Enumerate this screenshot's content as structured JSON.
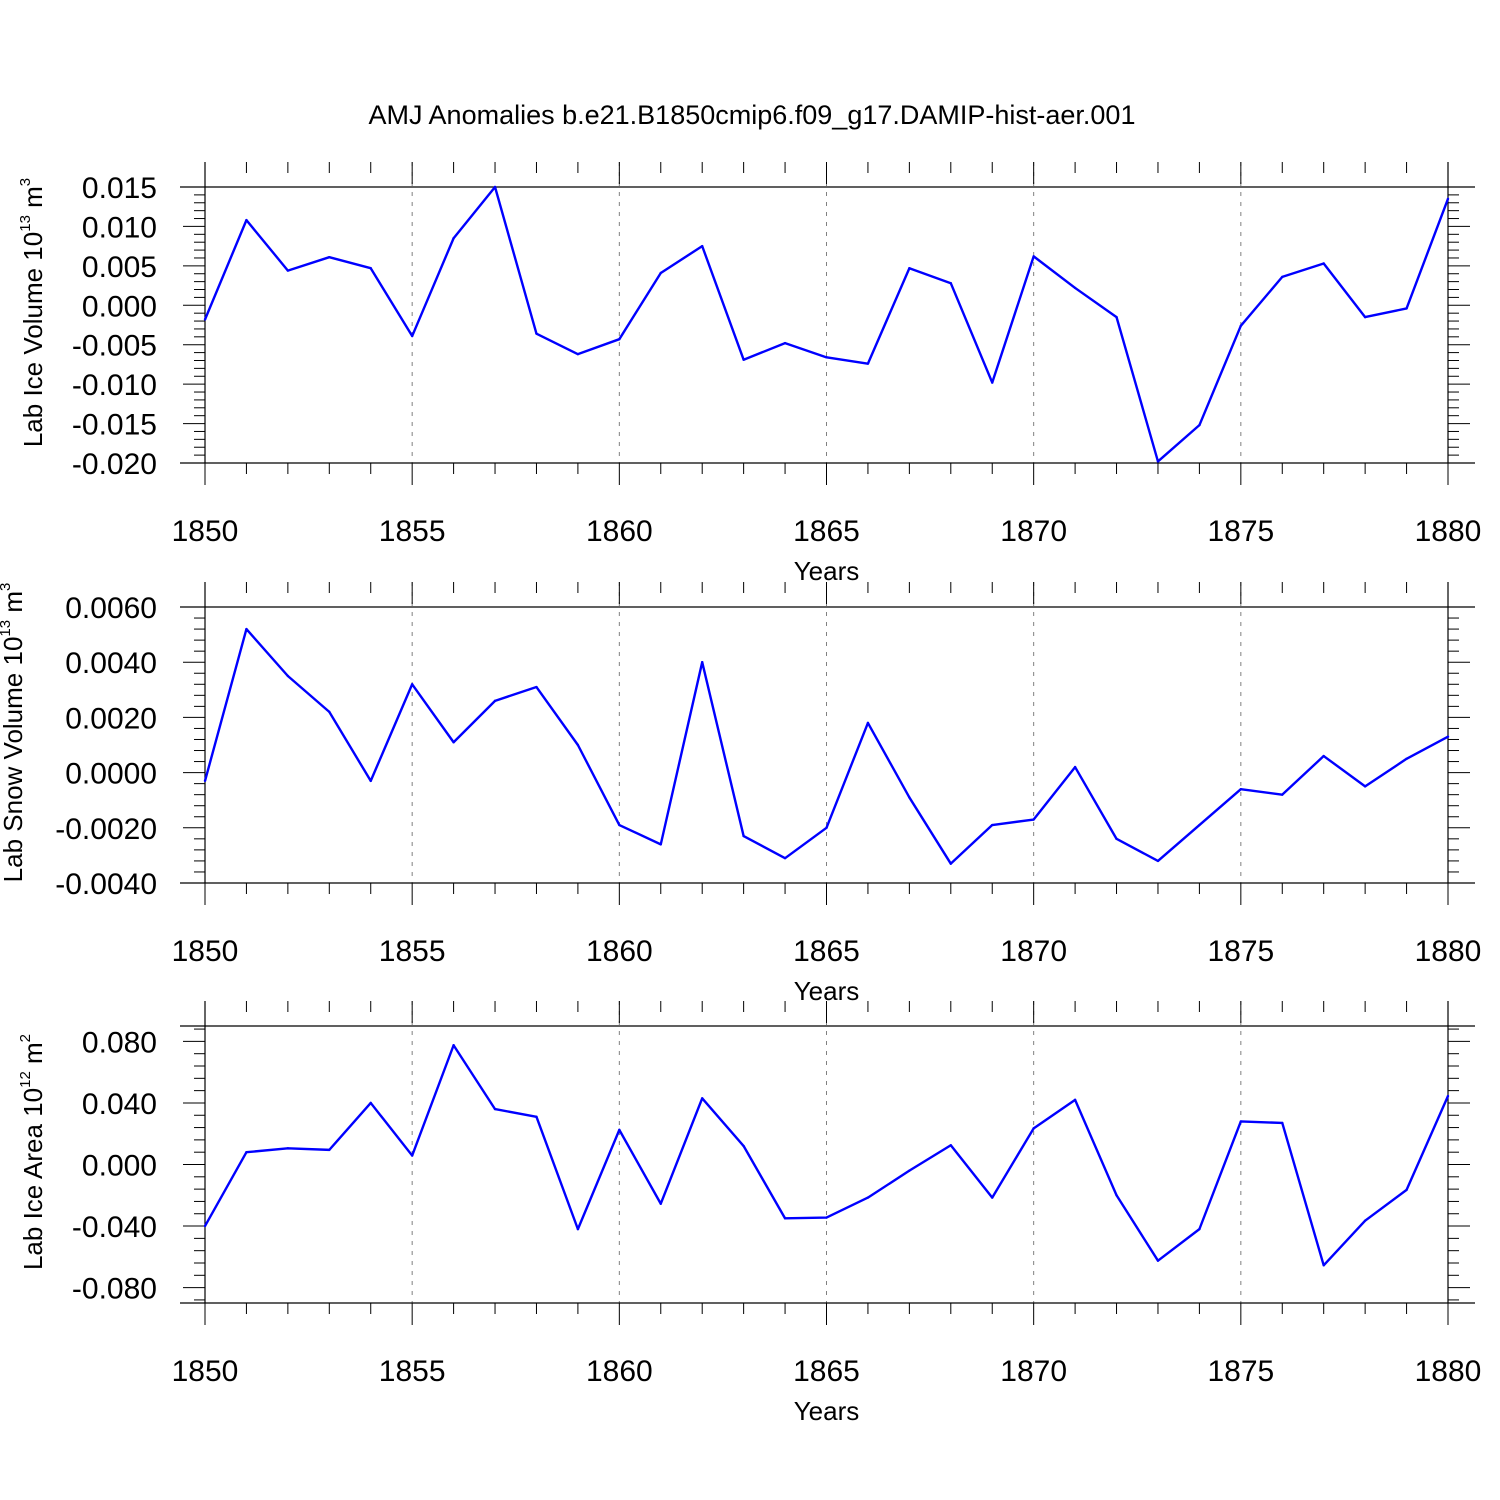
{
  "title": "AMJ Anomalies b.e21.B1850cmip6.f09_g17.DAMIP-hist-aer.001",
  "colors": {
    "line": "#0000ff",
    "axis": "#000000",
    "grid": "#808080",
    "background": "#ffffff"
  },
  "chart_data": [
    {
      "type": "line",
      "ylabel": {
        "prefix": "Lab Ice Volume 10",
        "exponent": "13",
        "unit": " m",
        "unit_exponent": "3"
      },
      "xlabel": "Years",
      "xlim": [
        1850,
        1880
      ],
      "ylim": [
        -0.02,
        0.015
      ],
      "x_ticks": [
        "1850",
        "1855",
        "1860",
        "1865",
        "1870",
        "1875",
        "1880"
      ],
      "y_ticks": [
        "0.015",
        "0.010",
        "0.005",
        "0.000",
        "-0.005",
        "-0.010",
        "-0.015",
        "-0.020"
      ],
      "x_grid": "dashed vertical lines at major x ticks",
      "top_border_line": 0.015,
      "series": [
        {
          "x": [
            1850,
            1851,
            1852,
            1853,
            1854,
            1855,
            1856,
            1857,
            1858,
            1859,
            1860,
            1861,
            1862,
            1863,
            1864,
            1865,
            1866,
            1867,
            1868,
            1869,
            1870,
            1871,
            1872,
            1873,
            1874,
            1875,
            1876,
            1877,
            1878,
            1879,
            1880
          ],
          "values": [
            -0.0018,
            0.0108,
            0.0044,
            0.0061,
            0.0047,
            -0.0039,
            0.0085,
            0.015,
            -0.0036,
            -0.0062,
            -0.0043,
            0.0041,
            0.0075,
            -0.0069,
            -0.0048,
            -0.0066,
            -0.0074,
            0.0047,
            0.0028,
            -0.0098,
            0.0062,
            0.0022,
            -0.0015,
            -0.0198,
            -0.0152,
            -0.0026,
            0.0036,
            0.0053,
            -0.0015,
            -0.0004,
            0.0135
          ]
        }
      ]
    },
    {
      "type": "line",
      "ylabel": {
        "prefix": "Lab Snow Volume 10",
        "exponent": "13",
        "unit": " m",
        "unit_exponent": "3"
      },
      "xlabel": "Years",
      "xlim": [
        1850,
        1880
      ],
      "ylim": [
        -0.004,
        0.006
      ],
      "x_ticks": [
        "1850",
        "1855",
        "1860",
        "1865",
        "1870",
        "1875",
        "1880"
      ],
      "y_ticks": [
        "0.0060",
        "0.0040",
        "0.0020",
        "0.0000",
        "-0.0020",
        "-0.0040"
      ],
      "x_grid": "dashed vertical lines at major x ticks",
      "top_border_line": 0.006,
      "series": [
        {
          "x": [
            1850,
            1851,
            1852,
            1853,
            1854,
            1855,
            1856,
            1857,
            1858,
            1859,
            1860,
            1861,
            1862,
            1863,
            1864,
            1865,
            1866,
            1867,
            1868,
            1869,
            1870,
            1871,
            1872,
            1873,
            1874,
            1875,
            1876,
            1877,
            1878,
            1879,
            1880
          ],
          "values": [
            -0.0003,
            0.0052,
            0.0035,
            0.0022,
            -0.0003,
            0.0032,
            0.0011,
            0.0026,
            0.0031,
            0.001,
            -0.0019,
            -0.0026,
            0.004,
            -0.0023,
            -0.0031,
            -0.002,
            0.0018,
            -0.0009,
            -0.0033,
            -0.0019,
            -0.0017,
            0.0002,
            -0.0024,
            -0.0032,
            -0.0019,
            -0.0006,
            -0.0008,
            0.0006,
            -0.0005,
            0.0005,
            0.0013
          ]
        }
      ]
    },
    {
      "type": "line",
      "ylabel": {
        "prefix": "Lab Ice Area 10",
        "exponent": "12",
        "unit": " m",
        "unit_exponent": "2"
      },
      "xlabel": "Years",
      "xlim": [
        1850,
        1880
      ],
      "ylim": [
        -0.09,
        0.09
      ],
      "x_ticks": [
        "1850",
        "1855",
        "1860",
        "1865",
        "1870",
        "1875",
        "1880"
      ],
      "y_ticks": [
        "0.080",
        "0.040",
        "0.000",
        "-0.040",
        "-0.080"
      ],
      "x_grid": "dashed vertical lines at major x ticks",
      "top_border_line": 0.09,
      "series": [
        {
          "x": [
            1850,
            1851,
            1852,
            1853,
            1854,
            1855,
            1856,
            1857,
            1858,
            1859,
            1860,
            1861,
            1862,
            1863,
            1864,
            1865,
            1866,
            1867,
            1868,
            1869,
            1870,
            1871,
            1872,
            1873,
            1874,
            1875,
            1876,
            1877,
            1878,
            1879,
            1880
          ],
          "values": [
            -0.04,
            0.008,
            0.0105,
            0.0095,
            0.04,
            0.0058,
            0.0775,
            0.036,
            0.031,
            -0.042,
            0.0225,
            -0.0255,
            0.043,
            0.012,
            -0.035,
            -0.0345,
            -0.0215,
            -0.004,
            0.0125,
            -0.0215,
            0.0235,
            0.042,
            -0.02,
            -0.0625,
            -0.042,
            0.028,
            0.027,
            -0.0655,
            -0.0365,
            -0.0165,
            0.0445
          ]
        }
      ]
    }
  ]
}
